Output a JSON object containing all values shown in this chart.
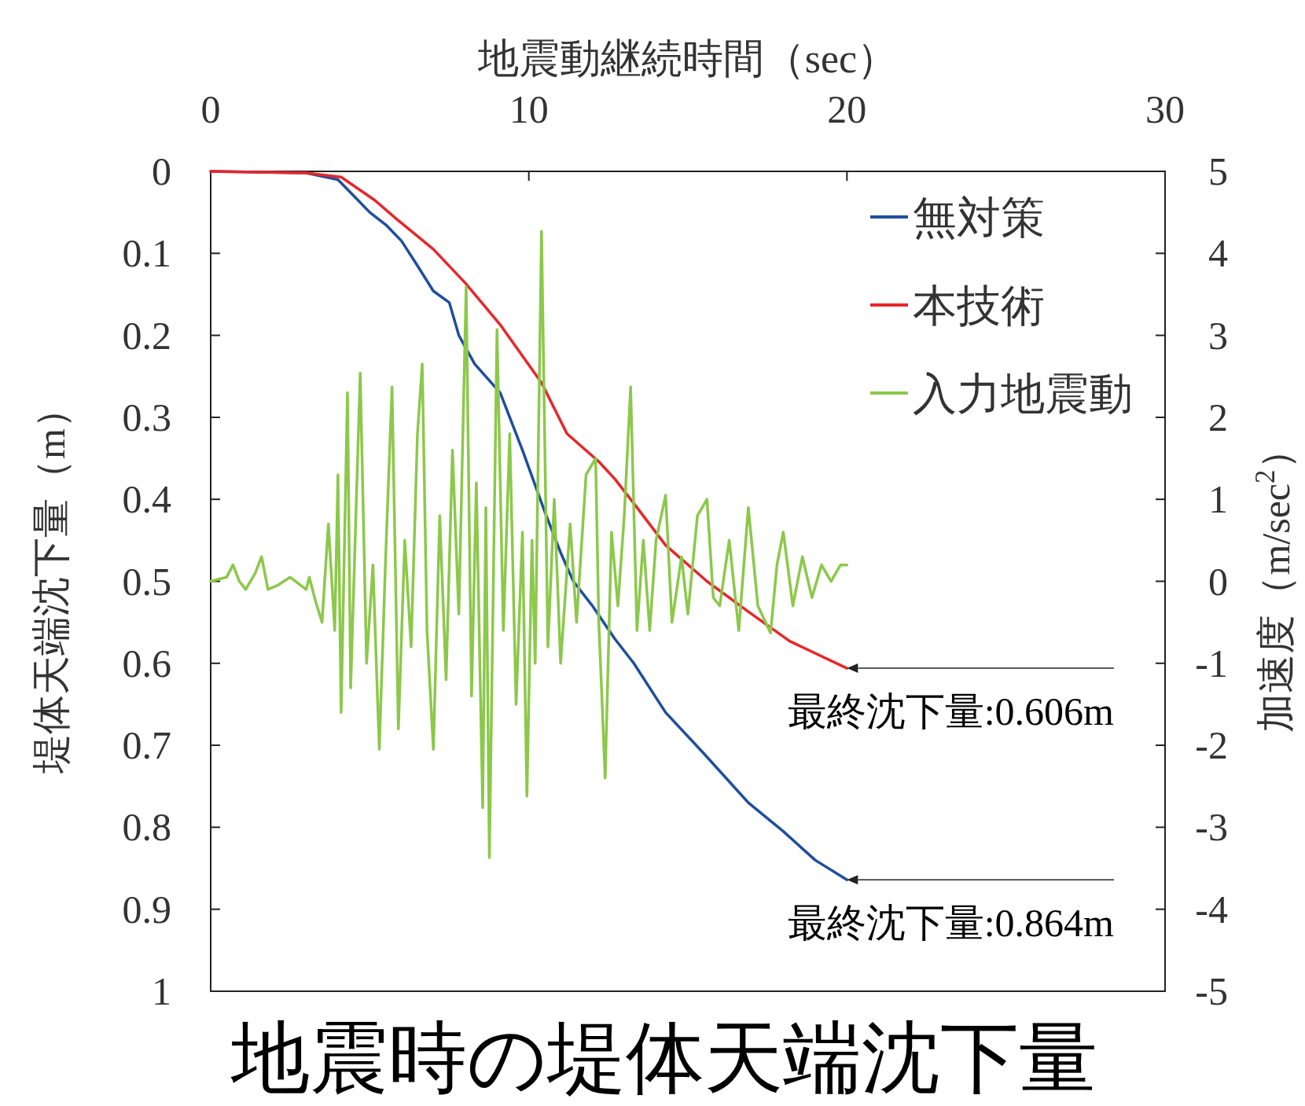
{
  "chart_data": {
    "type": "line",
    "title": "地震時の堤体天端沈下量",
    "xlabel": "地震動継続時間（sec）",
    "ylabel": "堤体天端沈下量（m）",
    "y2label": "加速度（m/sec$^{2}$）",
    "xlim": [
      0,
      30
    ],
    "xticks": [
      0,
      10,
      20,
      30
    ],
    "ylim": [
      1,
      0
    ],
    "yticks": [
      0,
      0.1,
      0.2,
      0.3,
      0.4,
      0.5,
      0.6,
      0.7,
      0.8,
      0.9,
      1
    ],
    "y2lim": [
      -5,
      5
    ],
    "y2ticks": [
      -5,
      -4,
      -3,
      -2,
      -1,
      0,
      1,
      2,
      3,
      4,
      5
    ],
    "grid": false,
    "legend": "top right",
    "marker": "none",
    "line_style": "solid",
    "series": [
      {
        "name": "無対策",
        "color": "#1f4e9e",
        "x": [
          0,
          3,
          4,
          4.5,
          5,
          5.5,
          6,
          6.5,
          7,
          7.5,
          7.8,
          8.3,
          9.1,
          9.8,
          10.5,
          11,
          11.4,
          12,
          12.7,
          13.3,
          14.3,
          15.5,
          16.9,
          18,
          19,
          20
        ],
        "values": [
          0,
          0.002,
          0.01,
          0.03,
          0.05,
          0.065,
          0.085,
          0.115,
          0.146,
          0.16,
          0.2,
          0.235,
          0.27,
          0.34,
          0.415,
          0.465,
          0.5,
          0.53,
          0.57,
          0.6,
          0.66,
          0.71,
          0.77,
          0.805,
          0.84,
          0.864
        ]
      },
      {
        "name": "本技術",
        "color": "#e8262a",
        "x": [
          0,
          3,
          4.1,
          5.15,
          5.9,
          7,
          8,
          9.1,
          10.4,
          11.2,
          12.2,
          12.7,
          13.3,
          14.3,
          15.6,
          16.9,
          18.2,
          20
        ],
        "values": [
          0,
          0.002,
          0.007,
          0.035,
          0.06,
          0.095,
          0.136,
          0.187,
          0.258,
          0.32,
          0.354,
          0.375,
          0.405,
          0.456,
          0.5,
          0.537,
          0.573,
          0.606
        ]
      },
      {
        "name": "入力地震動",
        "color": "#8cc84b",
        "axis": "y2",
        "x": [
          0,
          0.5,
          0.7,
          0.9,
          1.1,
          1.4,
          1.6,
          1.8,
          2.1,
          2.5,
          3,
          3.1,
          3.3,
          3.5,
          3.7,
          3.9,
          4.0,
          4.1,
          4.3,
          4.4,
          4.7,
          4.9,
          5.1,
          5.3,
          5.5,
          5.7,
          5.9,
          6.1,
          6.3,
          6.5,
          6.65,
          6.8,
          7.0,
          7.2,
          7.4,
          7.6,
          7.8,
          8.03,
          8.2,
          8.35,
          8.55,
          8.65,
          8.76,
          9.0,
          9.2,
          9.4,
          9.6,
          9.8,
          9.94,
          10.1,
          10.2,
          10.4,
          10.6,
          10.8,
          11.0,
          11.3,
          11.5,
          11.8,
          12.1,
          12.2,
          12.4,
          12.6,
          12.8,
          13.0,
          13.2,
          13.4,
          13.6,
          13.8,
          14.0,
          14.3,
          14.5,
          14.8,
          15.0,
          15.3,
          15.6,
          15.8,
          16.0,
          16.3,
          16.6,
          16.9,
          17.2,
          17.6,
          17.8,
          18.0,
          18.3,
          18.6,
          18.9,
          19.2,
          19.5,
          19.8,
          20
        ],
        "values": [
          0,
          0.05,
          0.2,
          0,
          -0.1,
          0.1,
          0.3,
          -0.1,
          -0.05,
          0.05,
          -0.1,
          0.05,
          -0.25,
          -0.5,
          0.7,
          -0.6,
          1.3,
          -1.6,
          2.3,
          -1.3,
          2.54,
          -1.0,
          0.2,
          -2.05,
          0.3,
          2.37,
          -1.8,
          0.5,
          -0.8,
          1.8,
          2.65,
          -0.6,
          -2.05,
          0.8,
          -1.2,
          1.6,
          -0.4,
          3.59,
          -1.4,
          1.2,
          -2.76,
          0.9,
          -3.37,
          3.07,
          -0.6,
          1.8,
          -1.5,
          0.6,
          -2.62,
          0.5,
          -1.0,
          4.27,
          -0.8,
          1.0,
          -1.0,
          0.7,
          -0.5,
          1.3,
          1.5,
          -0.5,
          -2.4,
          0.6,
          -0.3,
          0.8,
          2.37,
          -0.6,
          0.5,
          -0.6,
          0.5,
          1.05,
          -0.5,
          0.3,
          -0.4,
          0.8,
          1.0,
          -0.2,
          -0.3,
          0.5,
          -0.6,
          0.9,
          -0.3,
          -0.63,
          0.2,
          0.6,
          -0.3,
          0.3,
          -0.2,
          0.2,
          0.0,
          0.2,
          0.2
        ]
      }
    ],
    "annotations": [
      {
        "text": "最終沈下量:0.606m",
        "x": 20,
        "y": 0.606
      },
      {
        "text": "最終沈下量:0.864m",
        "x": 20,
        "y": 0.864
      }
    ]
  }
}
